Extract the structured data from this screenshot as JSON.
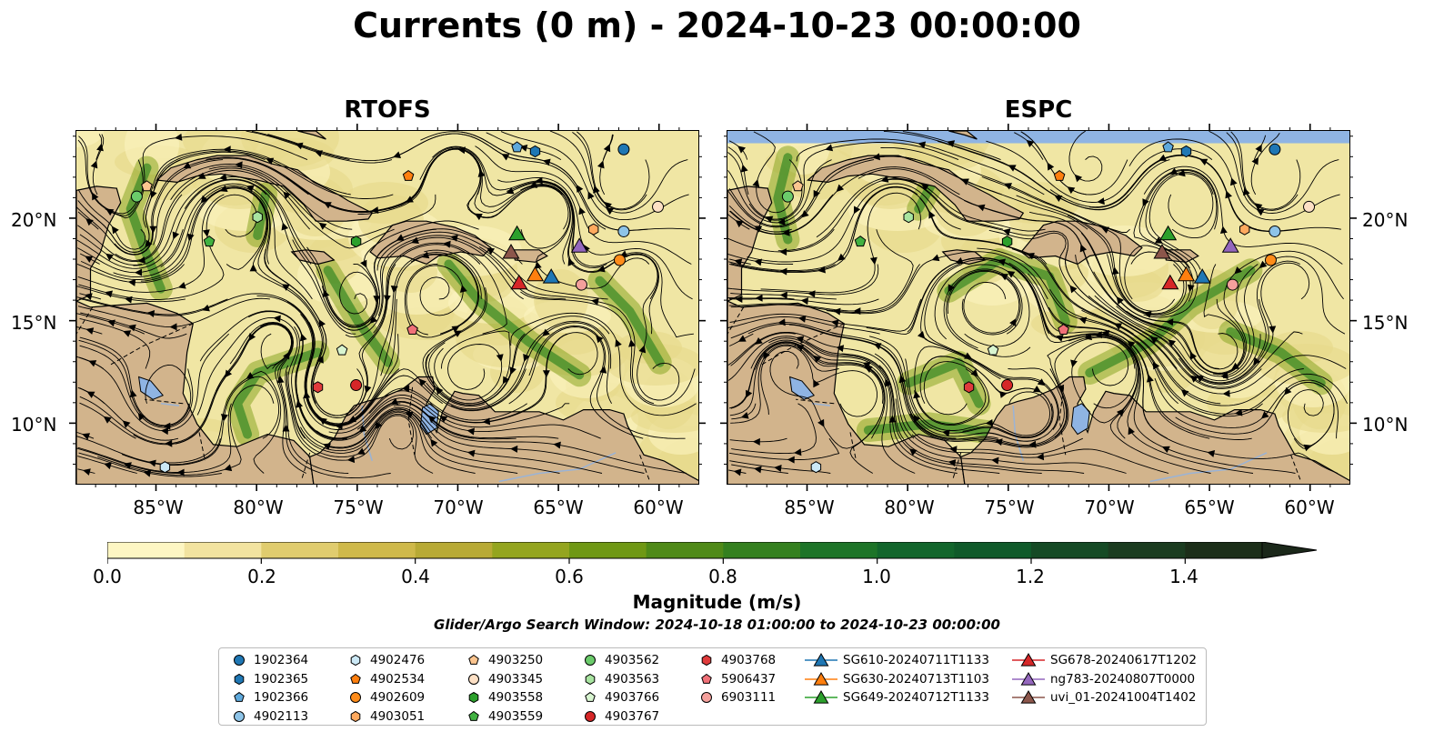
{
  "title": "Currents (0 m) - 2024-10-23 00:00:00",
  "maps": [
    {
      "title": "RTOFS"
    },
    {
      "title": "ESPC"
    }
  ],
  "lat_ticks": [
    "20°N",
    "15°N",
    "10°N"
  ],
  "lon_ticks": [
    "85°W",
    "80°W",
    "75°W",
    "70°W",
    "65°W",
    "60°W"
  ],
  "colorbar": {
    "label": "Magnitude (m/s)",
    "ticks": [
      "0.0",
      "0.2",
      "0.4",
      "0.6",
      "0.8",
      "1.0",
      "1.2",
      "1.4"
    ],
    "range": [
      0,
      1.5
    ],
    "colors": [
      "#fdf6c3",
      "#f2e3a0",
      "#e0cc6e",
      "#cfb94a",
      "#b8aa35",
      "#94a51f",
      "#6f9814",
      "#4f8a18",
      "#34801f",
      "#1d7428",
      "#12662c",
      "#0f5a2a",
      "#154a25",
      "#1b3c20",
      "#1c2e19"
    ],
    "extend": "max"
  },
  "search_window": "Glider/Argo Search Window: 2024-10-18 01:00:00 to 2024-10-23 00:00:00",
  "legend": [
    {
      "label": "1902364",
      "marker": "circle",
      "color": "#1f77b4"
    },
    {
      "label": "1902365",
      "marker": "hexagon",
      "color": "#1f77b4"
    },
    {
      "label": "1902366",
      "marker": "pentagon",
      "color": "#5ea9dc"
    },
    {
      "label": "4902113",
      "marker": "circle",
      "color": "#8ec4e8"
    },
    {
      "label": "4902476",
      "marker": "hexagon",
      "color": "#cbe8f5"
    },
    {
      "label": "4902534",
      "marker": "pentagon",
      "color": "#ff7f0e"
    },
    {
      "label": "4902609",
      "marker": "circle",
      "color": "#ff8c1a"
    },
    {
      "label": "4903051",
      "marker": "hexagon",
      "color": "#ffa95e"
    },
    {
      "label": "4903250",
      "marker": "pentagon",
      "color": "#fcc58f"
    },
    {
      "label": "4903345",
      "marker": "circle",
      "color": "#fde0c5"
    },
    {
      "label": "4903558",
      "marker": "hexagon",
      "color": "#2ca02c"
    },
    {
      "label": "4903559",
      "marker": "pentagon",
      "color": "#41b141"
    },
    {
      "label": "4903562",
      "marker": "circle",
      "color": "#6bcb6b"
    },
    {
      "label": "4903563",
      "marker": "hexagon",
      "color": "#a8e4a0"
    },
    {
      "label": "4903766",
      "marker": "pentagon",
      "color": "#d8f5d0"
    },
    {
      "label": "4903767",
      "marker": "circle",
      "color": "#d62728"
    },
    {
      "label": "4903768",
      "marker": "hexagon",
      "color": "#e03b3c"
    },
    {
      "label": "5906437",
      "marker": "pentagon",
      "color": "#f07178"
    },
    {
      "label": "6903111",
      "marker": "circle",
      "color": "#f4a09c"
    },
    {
      "label": "SG610-20240711T1133",
      "marker": "triangle",
      "color": "#1f77b4"
    },
    {
      "label": "SG630-20240713T1103",
      "marker": "triangle",
      "color": "#ff7f0e"
    },
    {
      "label": "SG649-20240712T1133",
      "marker": "triangle",
      "color": "#2ca02c"
    },
    {
      "label": "SG678-20240617T1202",
      "marker": "triangle",
      "color": "#d62728"
    },
    {
      "label": "ng783-20240807T0000",
      "marker": "triangle",
      "color": "#9467bd"
    },
    {
      "label": "uvi_01-20241004T1402",
      "marker": "triangle",
      "color": "#8c564b"
    }
  ],
  "observations": [
    {
      "id": "1902364",
      "lon": -61.8,
      "lat": 23.4
    },
    {
      "id": "1902365",
      "lon": -66.2,
      "lat": 23.3
    },
    {
      "id": "1902366",
      "lon": -67.1,
      "lat": 23.5
    },
    {
      "id": "4902113",
      "lon": -61.8,
      "lat": 19.4
    },
    {
      "id": "4902476",
      "lon": -84.6,
      "lat": 7.9
    },
    {
      "id": "4902534",
      "lon": -72.5,
      "lat": 22.1
    },
    {
      "id": "4902609",
      "lon": -62.0,
      "lat": 18.0
    },
    {
      "id": "4903051",
      "lon": -63.3,
      "lat": 19.5
    },
    {
      "id": "4903250",
      "lon": -85.5,
      "lat": 21.6
    },
    {
      "id": "4903345",
      "lon": -60.1,
      "lat": 20.6
    },
    {
      "id": "4903558",
      "lon": -75.1,
      "lat": 18.9
    },
    {
      "id": "4903559",
      "lon": -82.4,
      "lat": 18.9
    },
    {
      "id": "4903562",
      "lon": -86.0,
      "lat": 21.1
    },
    {
      "id": "4903563",
      "lon": -80.0,
      "lat": 20.1
    },
    {
      "id": "4903766",
      "lon": -75.8,
      "lat": 13.6
    },
    {
      "id": "4903767",
      "lon": -75.1,
      "lat": 11.9
    },
    {
      "id": "4903768",
      "lon": -77.0,
      "lat": 11.8
    },
    {
      "id": "5906437",
      "lon": -72.3,
      "lat": 14.6
    },
    {
      "id": "6903111",
      "lon": -63.9,
      "lat": 16.8
    }
  ],
  "gliders": [
    {
      "id": "SG610-20240711T1133",
      "lon": -65.4,
      "lat": 17.2
    },
    {
      "id": "SG630-20240713T1103",
      "lon": -66.2,
      "lat": 17.3
    },
    {
      "id": "SG649-20240712T1133",
      "lon": -67.1,
      "lat": 19.3
    },
    {
      "id": "SG678-20240617T1202",
      "lon": -67.0,
      "lat": 16.9
    },
    {
      "id": "ng783-20240807T0000",
      "lon": -64.0,
      "lat": 18.7
    },
    {
      "id": "uvi_01-20241004T1402",
      "lon": -67.4,
      "lat": 18.4
    }
  ]
}
